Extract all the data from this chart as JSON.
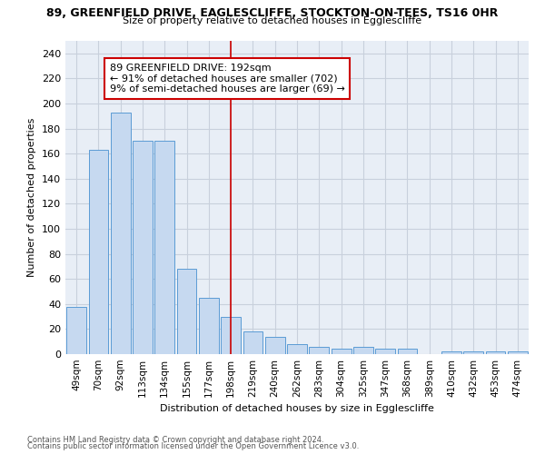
{
  "title": "89, GREENFIELD DRIVE, EAGLESCLIFFE, STOCKTON-ON-TEES, TS16 0HR",
  "subtitle": "Size of property relative to detached houses in Egglescliffe",
  "xlabel": "Distribution of detached houses by size in Egglescliffe",
  "ylabel": "Number of detached properties",
  "categories": [
    "49sqm",
    "70sqm",
    "92sqm",
    "113sqm",
    "134sqm",
    "155sqm",
    "177sqm",
    "198sqm",
    "219sqm",
    "240sqm",
    "262sqm",
    "283sqm",
    "304sqm",
    "325sqm",
    "347sqm",
    "368sqm",
    "389sqm",
    "410sqm",
    "432sqm",
    "453sqm",
    "474sqm"
  ],
  "values": [
    38,
    163,
    193,
    170,
    170,
    68,
    45,
    30,
    18,
    14,
    8,
    6,
    4,
    6,
    4,
    4,
    0,
    2,
    2,
    2,
    2
  ],
  "bar_color": "#c6d9f0",
  "bar_edge_color": "#5b9bd5",
  "highlight_index": 7,
  "highlight_line_color": "#cc0000",
  "annotation_text": "89 GREENFIELD DRIVE: 192sqm\n← 91% of detached houses are smaller (702)\n9% of semi-detached houses are larger (69) →",
  "annotation_box_color": "#ffffff",
  "annotation_box_edge_color": "#cc0000",
  "footnote1": "Contains HM Land Registry data © Crown copyright and database right 2024.",
  "footnote2": "Contains public sector information licensed under the Open Government Licence v3.0.",
  "ylim": [
    0,
    250
  ],
  "yticks": [
    0,
    20,
    40,
    60,
    80,
    100,
    120,
    140,
    160,
    180,
    200,
    220,
    240
  ],
  "background_color": "#ffffff",
  "grid_color": "#c8d0dc"
}
